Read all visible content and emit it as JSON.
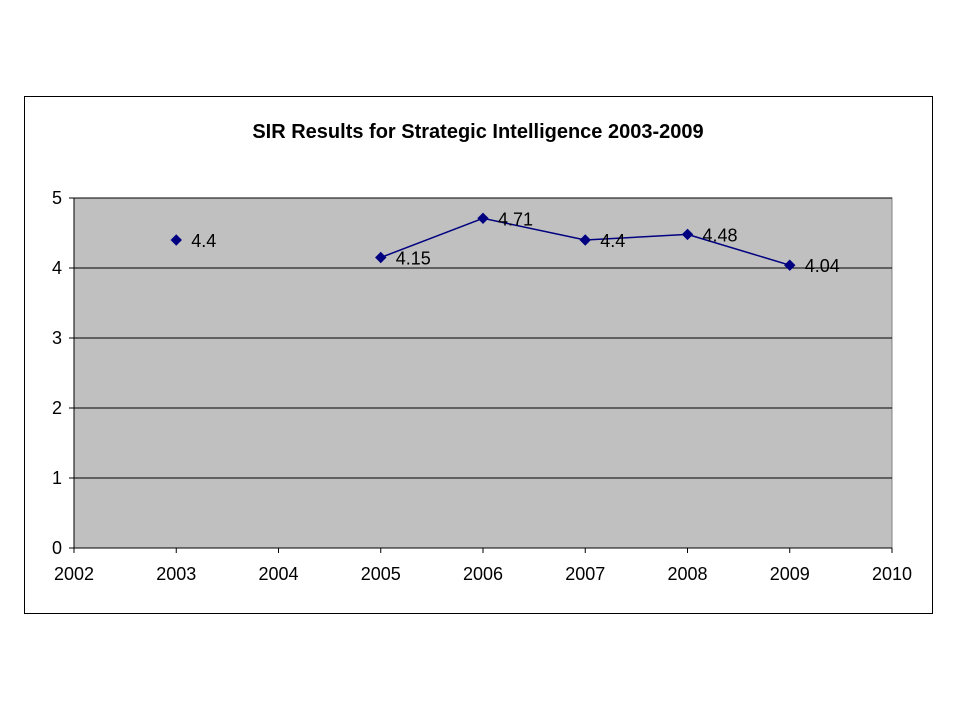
{
  "chart_data": {
    "type": "line",
    "title": "SIR Results for Strategic Intelligence 2003-2009",
    "xlabel": "",
    "ylabel": "",
    "xlim": [
      2002,
      2010
    ],
    "ylim": [
      0,
      5
    ],
    "x_ticks": [
      "2002",
      "2003",
      "2004",
      "2005",
      "2006",
      "2007",
      "2008",
      "2009",
      "2010"
    ],
    "y_ticks": [
      "0",
      "1",
      "2",
      "3",
      "4",
      "5"
    ],
    "grid": "horizontal",
    "legend": "none",
    "series": [
      {
        "color": "#000080",
        "marker": "diamond",
        "points": [
          {
            "x": 2003,
            "y": 4.4,
            "label": "4.4"
          },
          {
            "x": 2005,
            "y": 4.15,
            "label": "4.15"
          },
          {
            "x": 2006,
            "y": 4.71,
            "label": "4.71"
          },
          {
            "x": 2007,
            "y": 4.4,
            "label": "4.4"
          },
          {
            "x": 2008,
            "y": 4.48,
            "label": "4.48"
          },
          {
            "x": 2009,
            "y": 4.04,
            "label": "4.04"
          }
        ]
      }
    ],
    "plot_background": "#c0c0c0"
  }
}
